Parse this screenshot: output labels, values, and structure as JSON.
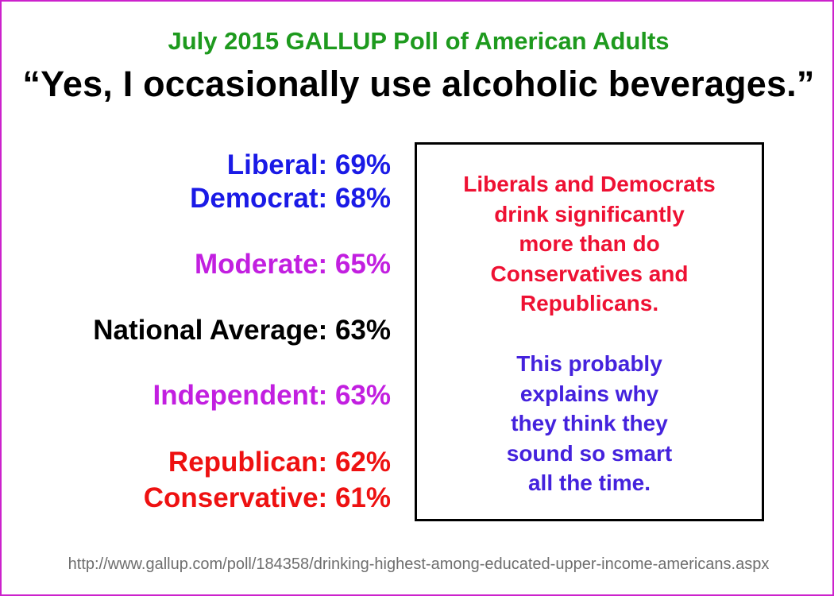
{
  "colors": {
    "border": "#cc22cc",
    "title": "#1e9a1e",
    "quote": "#000000",
    "liberal_side": "#1a1ae6",
    "moderate_side": "#c21fe0",
    "national": "#000000",
    "conservative_side": "#ee1111",
    "box_text_primary": "#ee1133",
    "box_text_secondary": "#4422dd",
    "source": "#6e6e6e"
  },
  "header": {
    "title": "July 2015 GALLUP Poll of American Adults",
    "quote": "“Yes, I occasionally use alcoholic beverages.”"
  },
  "stats": [
    {
      "label": "Liberal: 69%",
      "group": "Liberal",
      "percent": 69,
      "color": "#1a1ae6"
    },
    {
      "label": "Democrat: 68%",
      "group": "Democrat",
      "percent": 68,
      "color": "#1a1ae6"
    },
    {
      "label": "Moderate: 65%",
      "group": "Moderate",
      "percent": 65,
      "color": "#c21fe0"
    },
    {
      "label": "National Average: 63%",
      "group": "National Average",
      "percent": 63,
      "color": "#000000"
    },
    {
      "label": "Independent: 63%",
      "group": "Independent",
      "percent": 63,
      "color": "#c21fe0"
    },
    {
      "label": "Republican: 62%",
      "group": "Republican",
      "percent": 62,
      "color": "#ee1111"
    },
    {
      "label": "Conservative: 61%",
      "group": "Conservative",
      "percent": 61,
      "color": "#ee1111"
    }
  ],
  "commentary": {
    "paragraph1": [
      "Liberals and Democrats",
      "drink significantly",
      "more than do",
      "Conservatives and",
      "Republicans."
    ],
    "paragraph2": [
      "This probably",
      "explains why",
      "they think they",
      "sound so smart",
      "all the time."
    ]
  },
  "source_url": "http://www.gallup.com/poll/184358/drinking-highest-among-educated-upper-income-americans.aspx"
}
